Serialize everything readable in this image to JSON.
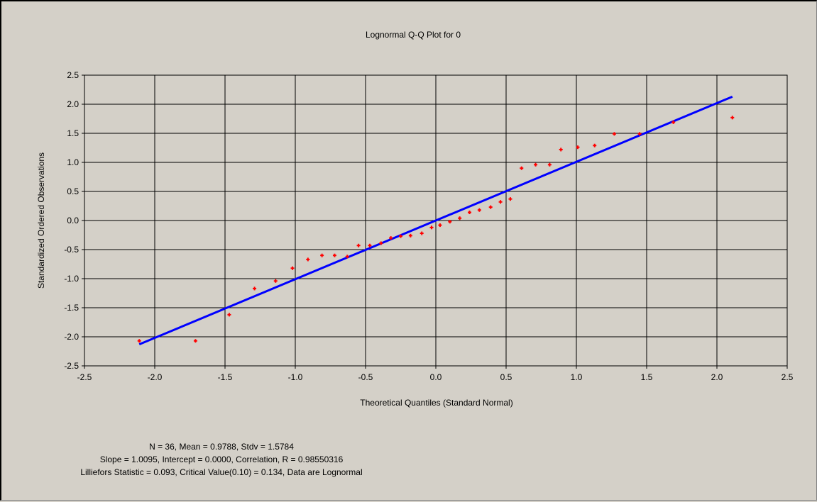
{
  "window": {
    "background": "#d4d0c8"
  },
  "chart_data": {
    "type": "scatter",
    "title": "Lognormal Q-Q Plot for 0",
    "xlabel": "Theoretical Quantiles (Standard Normal)",
    "ylabel": "Standardized Ordered Observations",
    "xlim": [
      -2.5,
      2.5
    ],
    "ylim": [
      -2.5,
      2.5
    ],
    "x_ticks": [
      -2.5,
      -2.0,
      -1.5,
      -1.0,
      -0.5,
      0.0,
      0.5,
      1.0,
      1.5,
      2.0,
      2.5
    ],
    "y_ticks": [
      2.5,
      2.0,
      1.5,
      1.0,
      0.5,
      0.0,
      -0.5,
      -1.0,
      -1.5,
      -2.0,
      -2.5
    ],
    "x_tick_labels": [
      "-2.5",
      "-2.0",
      "-1.5",
      "-1.0",
      "-0.5",
      "0.0",
      "0.5",
      "1.0",
      "1.5",
      "2.0",
      "2.5"
    ],
    "y_tick_labels": [
      "2.5",
      "2.0",
      "1.5",
      "1.0",
      "0.5",
      "0.0",
      "-0.5",
      "-1.0",
      "-1.5",
      "-2.0",
      "-2.5"
    ],
    "grid": true,
    "points_color": "#ff0000",
    "line_color": "#0000ff",
    "fit_line": {
      "slope": 1.0095,
      "intercept": 0.0,
      "x_range": [
        -2.11,
        2.11
      ]
    },
    "points": {
      "x": [
        -2.11,
        -1.71,
        -1.47,
        -1.29,
        -1.14,
        -1.02,
        -0.91,
        -0.81,
        -0.72,
        -0.63,
        -0.55,
        -0.47,
        -0.39,
        -0.32,
        -0.25,
        -0.18,
        -0.1,
        -0.03,
        0.03,
        0.1,
        0.17,
        0.24,
        0.31,
        0.39,
        0.46,
        0.53,
        0.61,
        0.71,
        0.81,
        0.89,
        1.01,
        1.13,
        1.27,
        1.45,
        1.69,
        2.11
      ],
      "y": [
        -2.07,
        -2.07,
        -1.62,
        -1.17,
        -1.04,
        -0.82,
        -0.67,
        -0.6,
        -0.6,
        -0.62,
        -0.43,
        -0.43,
        -0.39,
        -0.3,
        -0.27,
        -0.26,
        -0.22,
        -0.12,
        -0.08,
        -0.02,
        0.04,
        0.14,
        0.18,
        0.23,
        0.32,
        0.37,
        0.9,
        0.96,
        0.96,
        1.22,
        1.26,
        1.29,
        1.49,
        1.49,
        1.69,
        1.77
      ]
    }
  },
  "stats": {
    "line1": "N = 36,  Mean = 0.9788,  Stdv = 1.5784",
    "line2": "Slope = 1.0095,  Intercept = 0.0000,  Correlation, R = 0.98550316",
    "line3": "Lilliefors Statistic = 0.093,  Critical Value(0.10) = 0.134,  Data are Lognormal"
  }
}
